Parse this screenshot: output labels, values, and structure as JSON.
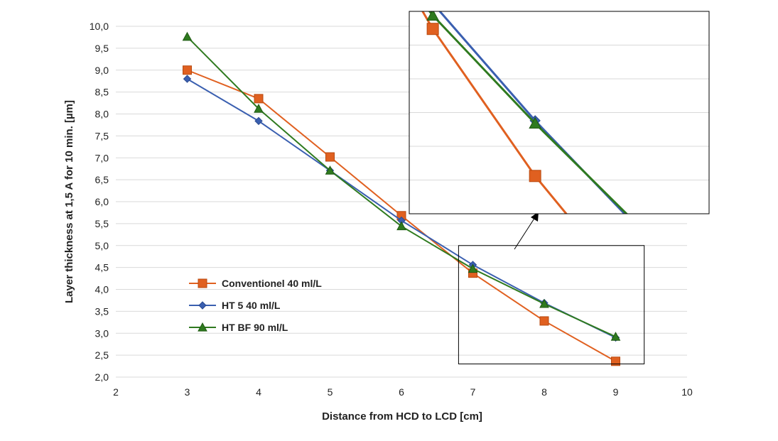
{
  "chart_data": {
    "type": "line",
    "xlabel": "Distance from HCD to LCD [cm]",
    "ylabel": "Layer thickness at 1,5 A for 10 min. [µm]",
    "xlim": [
      2,
      10
    ],
    "ylim": [
      2.0,
      10.0
    ],
    "x_ticks": [
      "2",
      "3",
      "4",
      "5",
      "6",
      "7",
      "8",
      "9",
      "10"
    ],
    "y_ticks": [
      "2,0",
      "2,5",
      "3,0",
      "3,5",
      "4,0",
      "4,5",
      "5,0",
      "5,5",
      "6,0",
      "6,5",
      "7,0",
      "7,5",
      "8,0",
      "8,5",
      "9,0",
      "9,5",
      "10,0"
    ],
    "grid": "horizontal",
    "legend_position": "left",
    "x": [
      3,
      4,
      5,
      6,
      7,
      8,
      9
    ],
    "series": [
      {
        "name": "Conventionel 40 ml/L",
        "color": "#e06020",
        "edge_color": "#b84a10",
        "marker": "square",
        "values": [
          9.0,
          8.35,
          7.02,
          5.68,
          4.37,
          3.28,
          2.36
        ]
      },
      {
        "name": "HT 5 40 ml/L",
        "color": "#3a5fb0",
        "edge_color": "#2b4a90",
        "marker": "diamond",
        "values": [
          8.8,
          7.84,
          6.71,
          5.57,
          4.56,
          3.69,
          2.9
        ]
      },
      {
        "name": "HT BF 90 ml/L",
        "color": "#2f7a1f",
        "edge_color": "#1f5a12",
        "marker": "triangle",
        "values": [
          9.76,
          8.12,
          6.71,
          5.44,
          4.47,
          3.67,
          2.92
        ]
      }
    ],
    "inset": {
      "description_type": "zoom",
      "source_x_range": [
        6.8,
        9.4
      ],
      "source_y_range": [
        2.3,
        5.0
      ],
      "view_x": [
        6.77,
        9.7
      ],
      "view_y": [
        3.0,
        4.5
      ]
    }
  }
}
